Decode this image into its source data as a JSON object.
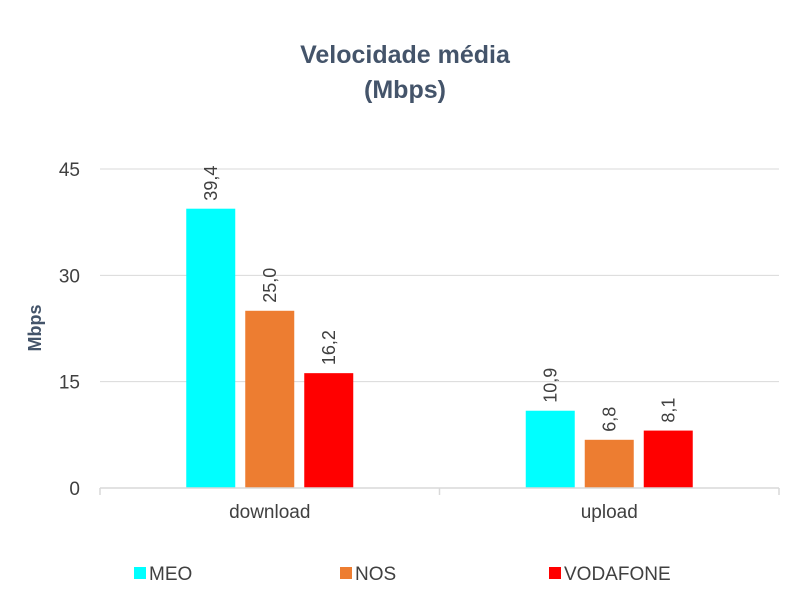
{
  "chart_data": {
    "type": "bar",
    "title": [
      "Velocidade média",
      "(Mbps)"
    ],
    "xlabel": "",
    "ylabel": "Mbps",
    "ylim": [
      0,
      45
    ],
    "yticks": [
      0,
      15,
      30,
      45
    ],
    "ytick_labels": [
      "0",
      "15",
      "30",
      "45"
    ],
    "grid": true,
    "categories": [
      "download",
      "upload"
    ],
    "series": [
      {
        "name": "MEO",
        "color": "#00ffff",
        "values": [
          39.4,
          10.9
        ],
        "labels": [
          "39,4",
          "10,9"
        ]
      },
      {
        "name": "NOS",
        "color": "#ed7d31",
        "values": [
          25.0,
          6.8
        ],
        "labels": [
          "25,0",
          "6,8"
        ]
      },
      {
        "name": "VODAFONE",
        "color": "#ff0000",
        "values": [
          16.2,
          8.1
        ],
        "labels": [
          "16,2",
          "8,1"
        ]
      }
    ],
    "legend_position": "bottom",
    "data_labels": "rotated-vertical",
    "colors": {
      "title": "#44546a",
      "text": "#404040",
      "grid": "#d9d9d9"
    }
  }
}
